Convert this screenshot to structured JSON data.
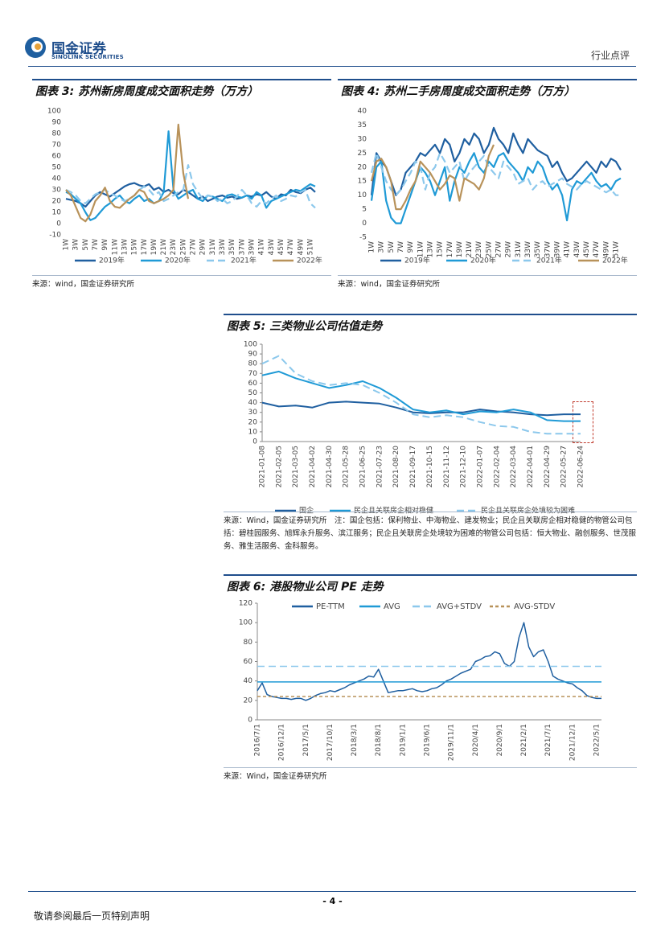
{
  "header": {
    "logo_cn": "国金证券",
    "logo_en": "SINOLINK SECURITIES",
    "section": "行业点评"
  },
  "footer": {
    "page": "- 4 -",
    "disclaimer": "敬请参阅最后一页特别声明"
  },
  "chart_data": [
    {
      "type": "line",
      "title": "图表 3: 苏州新房周度成交面积走势（万方）",
      "source": "来源：wind，国金证券研究所",
      "categories": [
        "1W",
        null,
        "3W",
        null,
        "5W",
        null,
        "7W",
        null,
        "9W",
        null,
        "11W",
        null,
        "13W",
        null,
        "15W",
        null,
        "17W",
        null,
        "19W",
        null,
        "21W",
        null,
        "23W",
        null,
        "25W",
        null,
        "27W",
        null,
        "29W",
        null,
        "31W",
        null,
        "33W",
        null,
        "35W",
        null,
        "37W",
        null,
        "39W",
        null,
        "41W",
        null,
        "43W",
        null,
        "45W",
        null,
        "47W",
        null,
        "49W",
        null,
        "51W",
        null
      ],
      "ylim": [
        -10,
        100
      ],
      "yticks": [
        -10,
        0,
        10,
        20,
        30,
        40,
        50,
        60,
        70,
        80,
        90,
        100
      ],
      "legend": "bottom",
      "series": [
        {
          "name": "2019年",
          "color": "#1f5fa0",
          "dash": "none",
          "values": [
            22,
            21,
            20,
            18,
            15,
            20,
            25,
            28,
            26,
            24,
            27,
            30,
            33,
            35,
            36,
            34,
            33,
            35,
            30,
            32,
            28,
            30,
            27,
            26,
            30,
            28,
            25,
            22,
            24,
            20,
            22,
            24,
            25,
            23,
            24,
            22,
            23,
            25,
            24,
            26,
            25,
            28,
            24,
            22,
            26,
            25,
            30,
            28,
            27,
            30,
            32,
            28
          ]
        },
        {
          "name": "2020年",
          "color": "#1f9ad6",
          "dash": "none",
          "values": [
            28,
            26,
            22,
            18,
            10,
            3,
            5,
            10,
            15,
            18,
            22,
            25,
            20,
            18,
            22,
            25,
            20,
            22,
            18,
            20,
            28,
            82,
            30,
            22,
            25,
            28,
            30,
            22,
            20,
            25,
            24,
            22,
            20,
            25,
            26,
            24,
            23,
            25,
            22,
            28,
            25,
            14,
            20,
            22,
            24,
            26,
            28,
            30,
            29,
            32,
            35,
            33
          ]
        },
        {
          "name": "2021年",
          "color": "#8cc8ec",
          "dash": "long",
          "values": [
            30,
            28,
            25,
            20,
            18,
            22,
            26,
            28,
            30,
            27,
            25,
            22,
            20,
            22,
            25,
            30,
            33,
            30,
            25,
            28,
            20,
            22,
            25,
            28,
            30,
            52,
            35,
            28,
            22,
            25,
            24,
            20,
            22,
            18,
            20,
            24,
            30,
            25,
            18,
            15,
            20,
            18,
            22,
            25,
            20,
            22,
            25,
            24,
            28,
            30,
            18,
            14
          ]
        },
        {
          "name": "2022年",
          "color": "#b8925a",
          "dash": "none",
          "values": [
            30,
            25,
            15,
            5,
            2,
            8,
            20,
            25,
            32,
            20,
            15,
            14,
            18,
            22,
            25,
            30,
            28,
            20,
            18,
            20,
            22,
            25,
            30,
            88,
            45,
            22,
            null,
            null,
            null,
            null,
            null,
            null,
            null,
            null,
            null,
            null,
            null,
            null,
            null,
            null,
            null,
            null,
            null,
            null,
            null,
            null,
            null,
            null,
            null,
            null,
            null,
            null
          ]
        }
      ]
    },
    {
      "type": "line",
      "title": "图表 4: 苏州二手房周度成交面积走势（万方）",
      "source": "来源：wind，国金证券研究所",
      "categories": [
        "1W",
        null,
        "3W",
        null,
        "5W",
        null,
        "7W",
        null,
        "9W",
        null,
        "11W",
        null,
        "13W",
        null,
        "15W",
        null,
        "17W",
        null,
        "19W",
        null,
        "21W",
        null,
        "23W",
        null,
        "25W",
        null,
        "27W",
        null,
        "29W",
        null,
        "31W",
        null,
        "33W",
        null,
        "35W",
        null,
        "37W",
        null,
        "39W",
        null,
        "41W",
        null,
        "43W",
        null,
        "45W",
        null,
        "47W",
        null,
        "49W",
        null,
        "51W",
        null
      ],
      "ylim": [
        -5,
        40
      ],
      "yticks": [
        -5,
        0,
        5,
        10,
        15,
        20,
        25,
        30,
        35,
        40
      ],
      "legend": "bottom",
      "series": [
        {
          "name": "2019年",
          "color": "#1f5fa0",
          "dash": "none",
          "values": [
            10,
            25,
            22,
            20,
            15,
            10,
            12,
            18,
            20,
            22,
            25,
            24,
            26,
            28,
            25,
            30,
            28,
            22,
            25,
            30,
            28,
            32,
            30,
            25,
            28,
            34,
            30,
            28,
            25,
            32,
            28,
            25,
            30,
            28,
            26,
            25,
            24,
            20,
            22,
            18,
            15,
            16,
            18,
            20,
            22,
            20,
            18,
            22,
            20,
            23,
            22,
            19
          ]
        },
        {
          "name": "2020年",
          "color": "#1f9ad6",
          "dash": "none",
          "values": [
            8,
            20,
            22,
            8,
            2,
            0,
            0,
            5,
            10,
            15,
            20,
            18,
            15,
            10,
            15,
            20,
            8,
            15,
            20,
            18,
            22,
            25,
            20,
            18,
            22,
            20,
            24,
            25,
            22,
            20,
            18,
            15,
            20,
            18,
            22,
            20,
            15,
            12,
            14,
            10,
            1,
            12,
            15,
            14,
            16,
            18,
            15,
            13,
            14,
            12,
            15,
            16
          ]
        },
        {
          "name": "2021年",
          "color": "#8cc8ec",
          "dash": "long",
          "values": [
            18,
            25,
            20,
            15,
            12,
            10,
            12,
            15,
            18,
            22,
            20,
            12,
            18,
            20,
            25,
            22,
            18,
            20,
            22,
            15,
            18,
            20,
            22,
            24,
            20,
            18,
            16,
            22,
            20,
            18,
            14,
            15,
            16,
            12,
            14,
            15,
            13,
            14,
            15,
            16,
            14,
            13,
            12,
            14,
            15,
            14,
            13,
            12,
            11,
            12,
            10,
            10
          ]
        },
        {
          "name": "2022年",
          "color": "#b8925a",
          "dash": "none",
          "values": [
            15,
            22,
            23,
            20,
            15,
            5,
            5,
            8,
            12,
            15,
            22,
            20,
            18,
            15,
            12,
            14,
            17,
            16,
            8,
            16,
            15,
            14,
            12,
            16,
            24,
            28,
            null,
            null,
            null,
            null,
            null,
            null,
            null,
            null,
            null,
            null,
            null,
            null,
            null,
            null,
            null,
            null,
            null,
            null,
            null,
            null,
            null,
            null,
            null,
            null,
            null,
            null
          ]
        }
      ]
    },
    {
      "type": "line",
      "title": "图表 5: 三类物业公司估值走势",
      "source": "来源：Wind，国金证券研究所　注：国企包括：保利物业、中海物业、建发物业；民企且关联房企相对稳健的物管公司包括：碧桂园服务、旭辉永升服务、滨江服务；民企且关联房企处境较为困难的物管公司包括：恒大物业、融创服务、世茂服务、雅生活服务、金科服务。",
      "categories": [
        "2021-01-08",
        "2021-02-05",
        "2021-03-05",
        "2021-04-02",
        "2021-04-30",
        "2021-05-28",
        "2021-06-25",
        "2021-07-23",
        "2021-08-20",
        "2021-09-17",
        "2021-10-15",
        "2021-11-12",
        "2021-12-10",
        "2022-01-07",
        "2022-02-04",
        "2022-03-04",
        "2022-04-01",
        "2022-04-29",
        "2022-05-27",
        "2022-06-24"
      ],
      "ylim": [
        0,
        100
      ],
      "yticks": [
        0,
        10,
        20,
        30,
        40,
        50,
        60,
        70,
        80,
        90,
        100
      ],
      "legend": "bottom",
      "axis_lines": true,
      "series": [
        {
          "name": "国企",
          "color": "#1f5fa0",
          "dash": "none",
          "values": [
            40,
            36,
            37,
            35,
            40,
            41,
            40,
            39,
            35,
            30,
            29,
            30,
            30,
            33,
            31,
            30,
            28,
            27,
            28,
            28
          ]
        },
        {
          "name": "民企且关联房企相对稳健",
          "color": "#1f9ad6",
          "dash": "none",
          "values": [
            68,
            72,
            65,
            60,
            55,
            58,
            62,
            55,
            45,
            33,
            30,
            32,
            28,
            31,
            30,
            33,
            30,
            22,
            21,
            21
          ]
        },
        {
          "name": "民企且关联房企处境较为困难",
          "color": "#8cc8ec",
          "dash": "long",
          "values": [
            80,
            88,
            70,
            62,
            58,
            60,
            58,
            50,
            40,
            28,
            25,
            27,
            25,
            20,
            16,
            15,
            10,
            8,
            8,
            8
          ]
        }
      ]
    },
    {
      "type": "line",
      "title": "图表 6: 港股物业公司 PE 走势",
      "source": "来源：Wind，国金证券研究所",
      "categories": [
        "2016/7/1",
        null,
        null,
        null,
        null,
        "2016/12/1",
        null,
        null,
        null,
        null,
        "2017/5/1",
        null,
        null,
        null,
        null,
        "2017/10/1",
        null,
        null,
        null,
        null,
        "2018/3/1",
        null,
        null,
        null,
        null,
        "2018/8/1",
        null,
        null,
        null,
        null,
        "2019/1/1",
        null,
        null,
        null,
        null,
        "2019/6/1",
        null,
        null,
        null,
        null,
        "2019/11/1",
        null,
        null,
        null,
        null,
        "2020/4/1",
        null,
        null,
        null,
        null,
        "2020/9/1",
        null,
        null,
        null,
        null,
        "2021/2/1",
        null,
        null,
        null,
        null,
        "2021/7/1",
        null,
        null,
        null,
        null,
        "2021/12/1",
        null,
        null,
        null,
        null,
        "2022/5/1",
        null
      ],
      "ylim": [
        0,
        120
      ],
      "yticks": [
        0,
        20,
        40,
        60,
        80,
        100,
        120
      ],
      "legend": "top",
      "axis_lines": true,
      "series": [
        {
          "name": "PE-TTM",
          "color": "#1f5fa0",
          "dash": "none",
          "values": [
            30,
            38,
            26,
            24,
            23,
            22,
            22,
            21,
            22,
            22,
            20,
            22,
            25,
            27,
            28,
            30,
            29,
            31,
            33,
            36,
            38,
            40,
            42,
            45,
            44,
            52,
            40,
            28,
            29,
            30,
            30,
            31,
            32,
            30,
            29,
            30,
            32,
            33,
            36,
            40,
            42,
            45,
            48,
            50,
            52,
            60,
            62,
            65,
            66,
            70,
            68,
            58,
            55,
            60,
            85,
            100,
            75,
            65,
            70,
            72,
            60,
            45,
            42,
            40,
            38,
            37,
            33,
            30,
            25,
            23,
            22,
            22
          ]
        },
        {
          "name": "AVG",
          "color": "#1f9ad6",
          "dash": "none",
          "value": 39
        },
        {
          "name": "AVG+STDV",
          "color": "#8cc8ec",
          "dash": "long",
          "value": 55
        },
        {
          "name": "AVG-STDV",
          "color": "#b8925a",
          "dash": "short",
          "value": 24
        }
      ]
    }
  ]
}
